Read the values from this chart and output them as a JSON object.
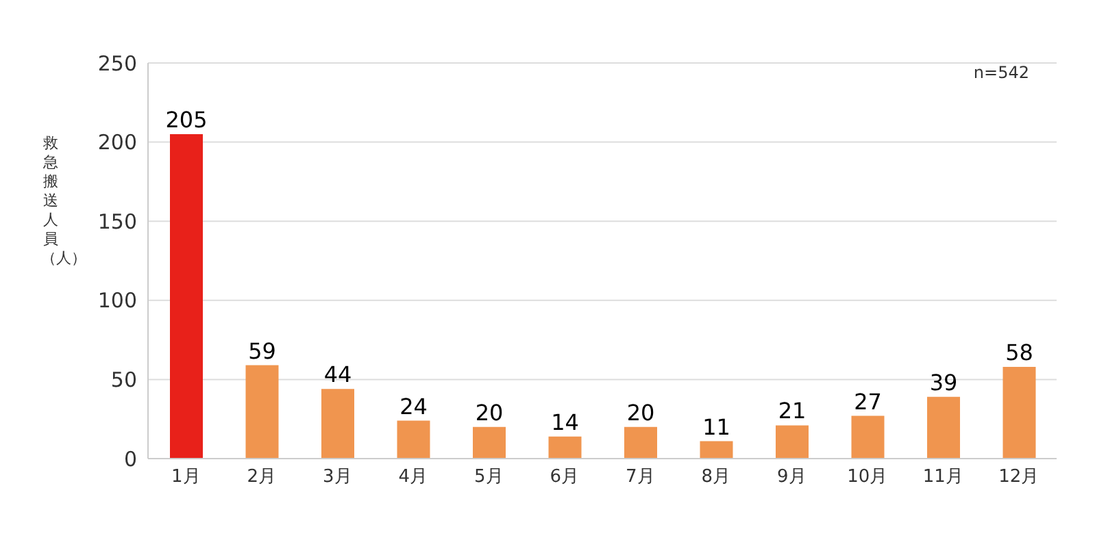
{
  "chart_data": {
    "type": "bar",
    "ylabel": "救急搬送人員（人）",
    "categories": [
      "1月",
      "2月",
      "3月",
      "4月",
      "5月",
      "6月",
      "7月",
      "8月",
      "9月",
      "10月",
      "11月",
      "12月"
    ],
    "values": [
      205,
      59,
      44,
      24,
      20,
      14,
      20,
      11,
      21,
      27,
      39,
      58
    ],
    "colors": [
      "#e8211a",
      "#f0954f",
      "#f0954f",
      "#f0954f",
      "#f0954f",
      "#f0954f",
      "#f0954f",
      "#f0954f",
      "#f0954f",
      "#f0954f",
      "#f0954f",
      "#f0954f"
    ],
    "ylim": [
      0,
      250
    ],
    "yticks": [
      0,
      50,
      100,
      150,
      200,
      250
    ],
    "grid": "y",
    "data_labels": true,
    "annotations": [
      "n=542"
    ]
  }
}
